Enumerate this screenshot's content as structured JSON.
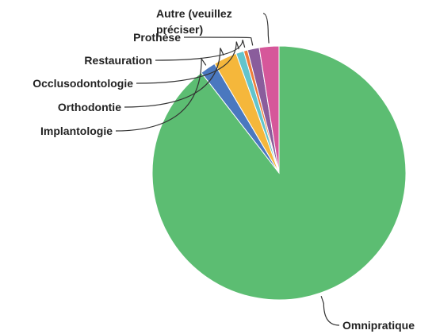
{
  "chart_data": {
    "type": "pie",
    "categories": [
      "Omnipratique",
      "Implantologie",
      "Orthodontie",
      "Occlusodontologie",
      "Restauration",
      "Prothèse",
      "Autre (veuillez préciser)"
    ],
    "values": [
      89.5,
      2,
      3,
      1,
      0.5,
      1.5,
      2.5
    ],
    "colors": [
      "#5cbd72",
      "#4a78bf",
      "#f5b73b",
      "#62c4cc",
      "#ee7d3a",
      "#8a5d9c",
      "#d6579a"
    ]
  }
}
